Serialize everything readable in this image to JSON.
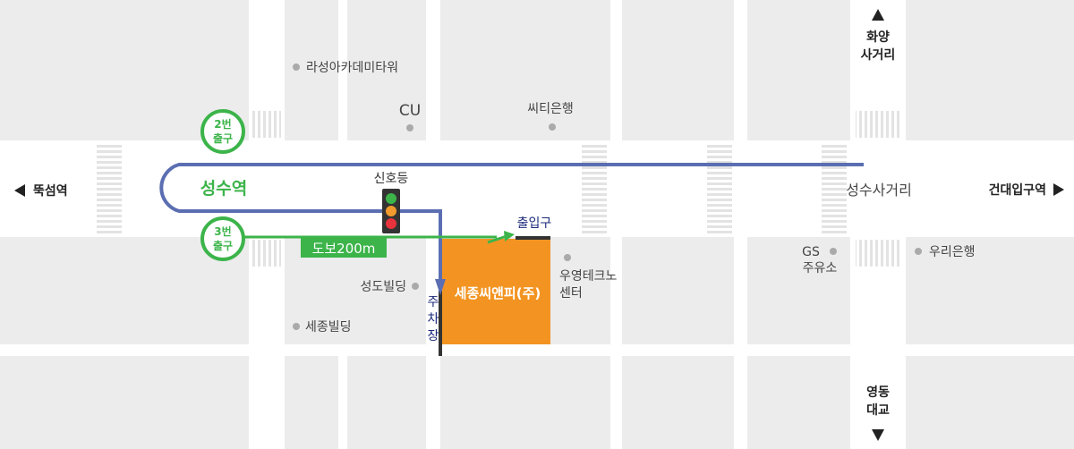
{
  "labels": {
    "station": "성수역",
    "walk": "도보200m",
    "exit2_line1": "2번",
    "exit2_line2": "출구",
    "exit3_line1": "3번",
    "exit3_line2": "출구",
    "traffic_light": "신호등",
    "company": "세종씨앤피(주)",
    "entrance": "출입구",
    "parking": [
      "주",
      "차",
      "장"
    ],
    "intersection": "성수사거리"
  },
  "landmarks": {
    "lasung": "라성아카데미타워",
    "cu": "CU",
    "citibank": "씨티은행",
    "seongdo": "성도빌딩",
    "sejong_bldg": "세종빌딩",
    "wooyoung_line1": "우영테크노",
    "wooyoung_line2": "센터",
    "gs_line1": "GS",
    "gs_line2": "주유소",
    "woori": "우리은행"
  },
  "directions": {
    "north_line1": "화양",
    "north_line2": "사거리",
    "south_line1": "영동",
    "south_line2": "대교",
    "west": "뚝섬역",
    "east": "건대입구역"
  },
  "colors": {
    "route_blue": "#5b6eb2",
    "walk_green": "#3cb44a",
    "building_orange": "#f39422",
    "block_gray": "#ececec",
    "label_text": "#444444",
    "navy_text": "#1b2a7a",
    "light_red": "#e8323c",
    "light_yellow": "#f29a2e",
    "light_green": "#3cb44a"
  }
}
